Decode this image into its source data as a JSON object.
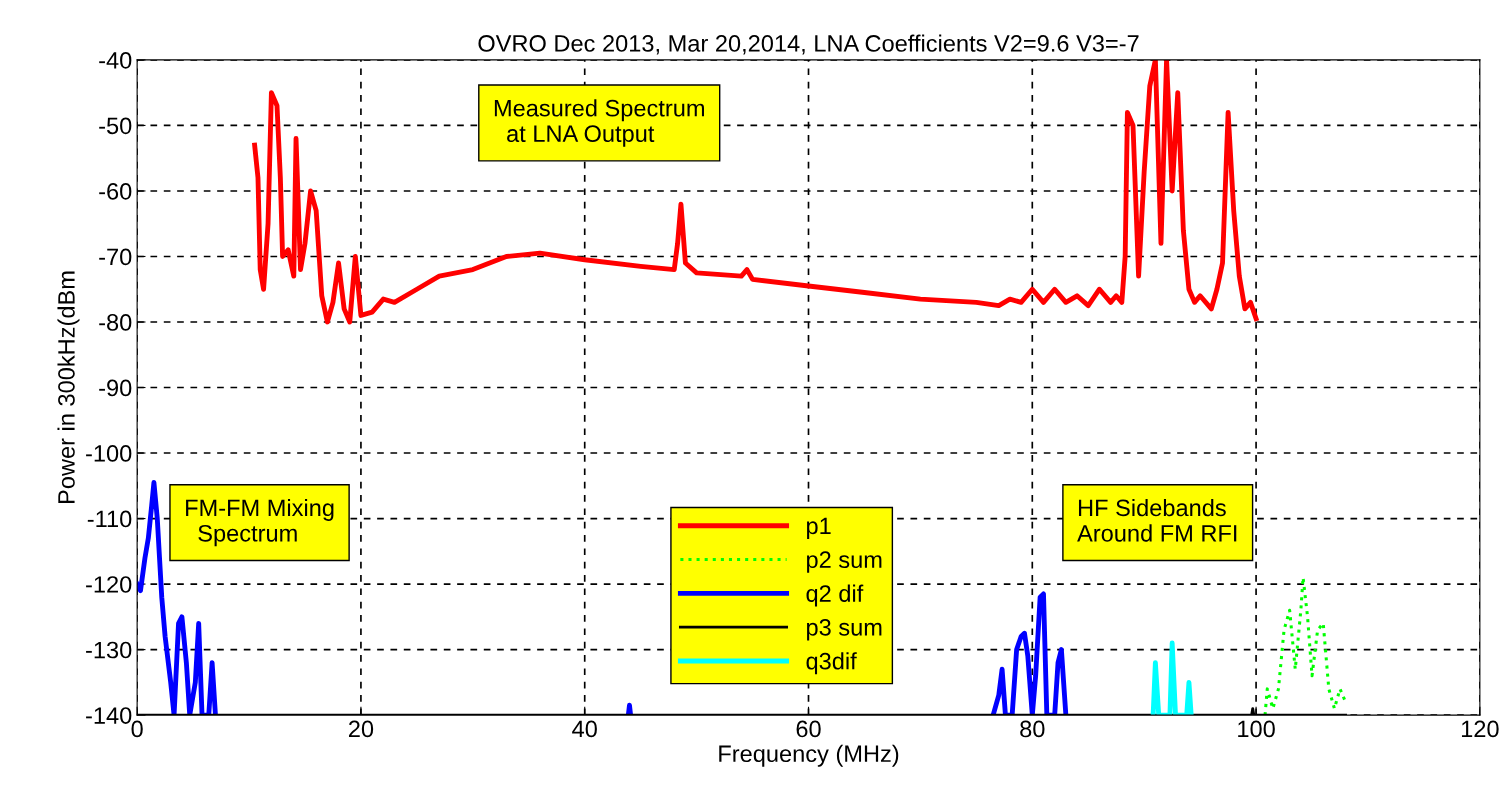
{
  "chart_data": {
    "type": "line",
    "title": "OVRO Dec 2013, Mar 20,2014, LNA Coefficients V2=9.6 V3=-7",
    "xlabel": "Frequency (MHz)",
    "ylabel": "Power in 300kHz(dBm",
    "xlim": [
      0,
      120
    ],
    "xticks": [
      0,
      20,
      40,
      60,
      80,
      100,
      120
    ],
    "ylim": [
      -140,
      -40
    ],
    "yticks": [
      -140,
      -130,
      -120,
      -110,
      -100,
      -90,
      -80,
      -70,
      -60,
      -50,
      -40
    ],
    "grid": true,
    "legend": "bottom",
    "marker": "none",
    "annotations": [
      "Measured Spectrum\n  at LNA Output",
      "FM-FM Mixing\n  Spectrum",
      "HF Sidebands\nAround FM RFI"
    ],
    "series": [
      {
        "name": "p1",
        "color": "#ff0000",
        "line_style": "solid",
        "x": [
          10.5,
          10.8,
          11,
          11.3,
          11.7,
          12,
          12.5,
          12.8,
          13,
          13.5,
          14,
          14.2,
          14.6,
          15,
          15.5,
          16,
          16.5,
          17,
          17.5,
          18,
          18.5,
          19,
          19.5,
          20,
          21,
          22,
          23,
          25,
          27,
          30,
          33,
          36,
          40,
          45,
          48,
          48.3,
          48.6,
          49,
          50,
          54,
          54.5,
          55,
          60,
          65,
          70,
          75,
          77,
          78,
          79,
          80,
          81,
          82,
          83,
          84,
          85,
          86,
          87,
          87.5,
          88,
          88.3,
          88.5,
          89,
          89.5,
          90,
          90.5,
          91,
          91.5,
          92,
          92.5,
          93,
          93.5,
          94,
          94.5,
          95,
          96,
          96.5,
          97,
          97.5,
          98,
          98.5,
          99,
          99.5,
          100
        ],
        "values": [
          -53,
          -58,
          -72,
          -75,
          -65,
          -45,
          -47,
          -58,
          -70,
          -69,
          -73,
          -52,
          -72,
          -68,
          -60,
          -63,
          -76,
          -80,
          -77,
          -71,
          -78,
          -80,
          -70,
          -79,
          -78.5,
          -76.5,
          -77,
          -75,
          -73,
          -72,
          -70,
          -69.5,
          -70.5,
          -71.5,
          -72,
          -68,
          -62,
          -71,
          -72.5,
          -73,
          -72,
          -73.5,
          -74.5,
          -75.5,
          -76.5,
          -77,
          -77.5,
          -76.5,
          -77,
          -75,
          -77,
          -75,
          -77,
          -76,
          -77.5,
          -75,
          -77,
          -76,
          -77,
          -70,
          -48,
          -50,
          -73,
          -57,
          -44,
          -40,
          -68,
          -40,
          -60,
          -45,
          -66,
          -75,
          -77,
          -76,
          -78,
          -75,
          -71,
          -48,
          -63,
          -73,
          -78,
          -77,
          -79.5
        ]
      },
      {
        "name": "p2 sum",
        "color": "#00ff00",
        "line_style": "dotted",
        "x": [
          100.8,
          101,
          101.5,
          102,
          102.5,
          103,
          103.5,
          104,
          104.2,
          104.6,
          105,
          105.5,
          106,
          106.5,
          107,
          107.5,
          108
        ],
        "values": [
          -140,
          -136,
          -139,
          -136,
          -127,
          -124,
          -133,
          -124,
          -119,
          -125,
          -134,
          -127,
          -126,
          -136,
          -139,
          -136,
          -138
        ]
      },
      {
        "name": "q2 dif",
        "color": "#0000ff",
        "line_style": "solid",
        "x": [
          0,
          0.3,
          0.7,
          1,
          1.3,
          1.5,
          1.8,
          2.2,
          2.5,
          3,
          3.3,
          3.7,
          4,
          4.4,
          4.7,
          5.2,
          5.5,
          5.8,
          6.4,
          6.7,
          7,
          7.1,
          43.9,
          44,
          44.1,
          44.2,
          76.5,
          77,
          77.3,
          77.6,
          78.2,
          78.6,
          79,
          79.3,
          79.6,
          80,
          80.3,
          80.7,
          81,
          81.3,
          82,
          82.3,
          82.6,
          83
        ],
        "values": [
          -120,
          -121,
          -116,
          -113,
          -108,
          -104.5,
          -110,
          -122,
          -128,
          -135,
          -140,
          -126,
          -125,
          -132,
          -140,
          -135,
          -126,
          -140,
          -140,
          -132,
          -140,
          null,
          -140,
          -138.5,
          -140,
          null,
          -140,
          -137,
          -133,
          -140,
          -140,
          -130,
          -128,
          -127.5,
          -131,
          -140,
          -134,
          -122,
          -121.5,
          -140,
          -140,
          -132,
          -130,
          -140
        ]
      },
      {
        "name": "p3 sum",
        "color": "#000000",
        "line_style": "solid",
        "x": [
          0,
          99.6,
          99.7,
          99.8,
          108
        ],
        "values": [
          -140,
          -140,
          -139,
          -140,
          -140
        ]
      },
      {
        "name": "q3dif",
        "color": "#00ffff",
        "line_style": "solid",
        "x": [
          90.8,
          91,
          91.3,
          92.3,
          92.5,
          92.8,
          93.8,
          94,
          94.2
        ],
        "values": [
          -140,
          -132,
          -140,
          -140,
          -129,
          -140,
          -140,
          -135,
          -140
        ]
      }
    ]
  }
}
